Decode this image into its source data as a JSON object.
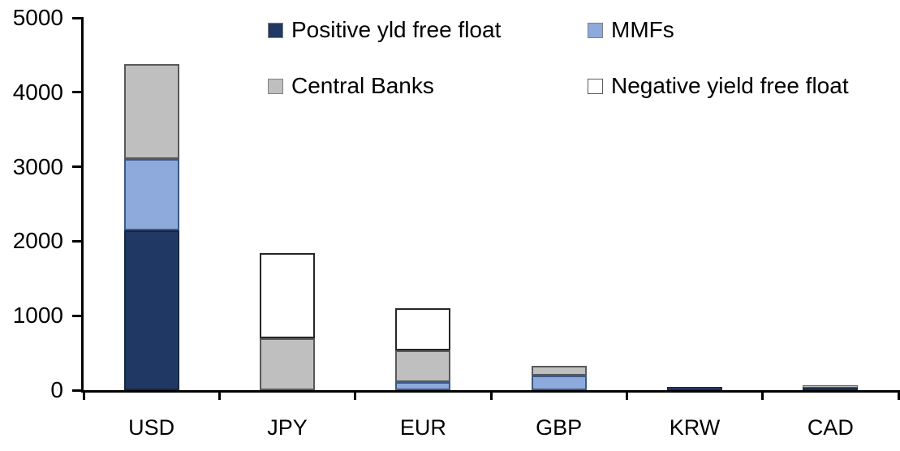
{
  "chart_data": {
    "type": "bar",
    "stacked": true,
    "title": "",
    "xlabel": "",
    "ylabel": "",
    "categories": [
      "USD",
      "JPY",
      "EUR",
      "GBP",
      "KRW",
      "CAD"
    ],
    "series": [
      {
        "name": "Positive yld free float",
        "color": "#203864",
        "border_color": "#17263F",
        "values": [
          2150,
          0,
          0,
          0,
          40,
          30
        ]
      },
      {
        "name": "MMFs",
        "color": "#8EA9DB",
        "border_color": "#3B5A86",
        "values": [
          950,
          0,
          110,
          200,
          0,
          0
        ]
      },
      {
        "name": "Central Banks",
        "color": "#BFBFBF",
        "border_color": "#595959",
        "values": [
          1280,
          700,
          420,
          130,
          0,
          30
        ]
      },
      {
        "name": "Negative yield free float",
        "color": "#FFFFFF",
        "border_color": "#262626",
        "values": [
          0,
          1140,
          570,
          0,
          0,
          0
        ]
      }
    ],
    "totals": [
      4380,
      1840,
      1100,
      330,
      40,
      60
    ],
    "ylim": [
      0,
      5000
    ],
    "yticks": [
      0,
      1000,
      2000,
      3000,
      4000,
      5000
    ],
    "grid": false,
    "legend_position": "top",
    "axis_color": "#000000",
    "text_color": "#000000"
  }
}
